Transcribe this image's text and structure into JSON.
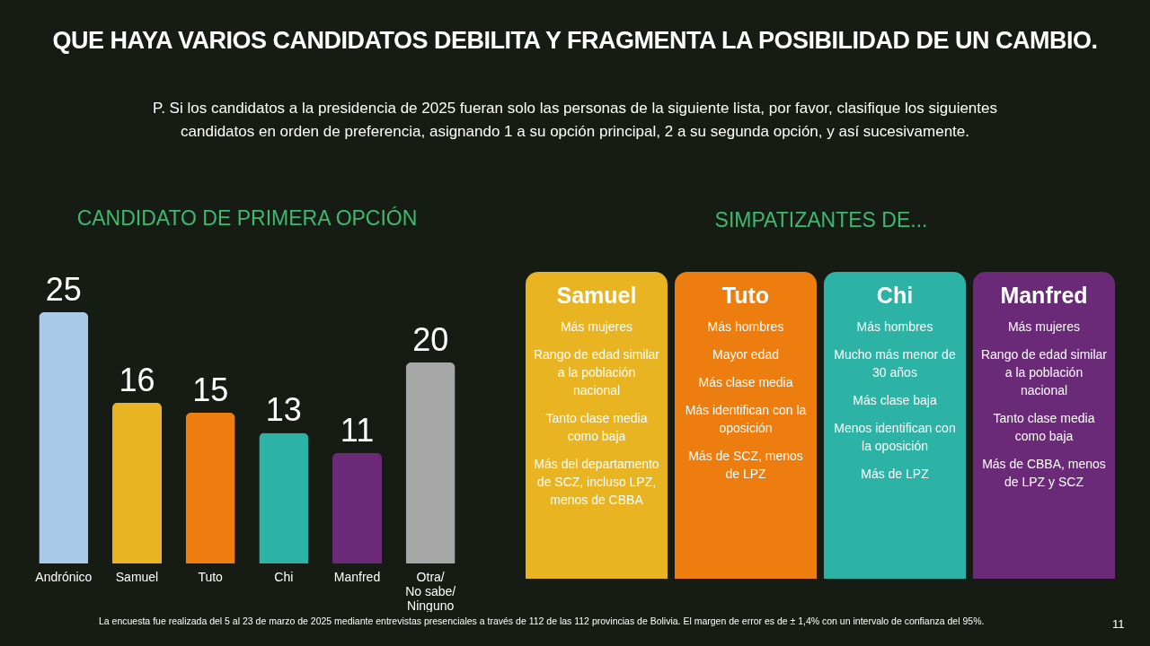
{
  "chart_data": [
    {
      "type": "other",
      "title": "QUE HAYA VARIOS CANDIDATOS DEBILITA Y FRAGMENTA LA POSIBILIDAD DE UN CAMBIO.",
      "subtitle": "P. Si los candidatos a la presidencia de 2025 fueran solo las personas de la siguiente lista, por favor, clasifique los siguientes candidatos en orden de preferencia, asignando 1 a su opción principal, 2 a su segunda opción, y así sucesivamente.",
      "annotations": [
        "La encuesta fue realizada del 5 al 23 de marzo de 2025 mediante entrevistas presenciales a través de 112 de las 112 provincias de Bolivia. El margen de error es de ± 1,4% con un intervalo de confianza del 95%.",
        "11"
      ]
    },
    {
      "type": "bar",
      "title": "CANDIDATO DE PRIMERA OPCIÓN",
      "categories": [
        "Andrónico",
        "Samuel",
        "Tuto",
        "Chi",
        "Manfred",
        "Otra/\nNo sabe/\nNinguno"
      ],
      "values": [
        25,
        16,
        15,
        13,
        11,
        20
      ],
      "colors": [
        "#a9c9e8",
        "#e9b422",
        "#ee7d0f",
        "#2db3a6",
        "#6b2a78",
        "#a6a6a6"
      ],
      "data_labels": true
    },
    {
      "type": "other",
      "title": "SIMPATIZANTES DE..."
    },
    {
      "type": "other",
      "title": "Samuel",
      "colors": [
        "#e9b422"
      ],
      "annotations": [
        "Más mujeres",
        "Rango de edad similar a la población nacional",
        "Tanto clase media como baja",
        "Más del departamento de SCZ, incluso LPZ, menos de CBBA"
      ]
    },
    {
      "type": "other",
      "title": "Tuto",
      "colors": [
        "#ee7d0f"
      ],
      "annotations": [
        "Más hombres",
        "Mayor edad",
        "Más clase media",
        "Más identifican con la oposición",
        "Más de SCZ, menos de LPZ"
      ]
    },
    {
      "type": "other",
      "title": "Chi",
      "colors": [
        "#2db3a6"
      ],
      "annotations": [
        "Más hombres",
        "Mucho más menor de 30 años",
        "Más clase baja",
        "Menos identifican con la oposición",
        "Más de LPZ"
      ]
    },
    {
      "type": "other",
      "title": "Manfred",
      "colors": [
        "#6b2a78"
      ],
      "annotations": [
        "Más mujeres",
        "Rango de edad similar a la población nacional",
        "Tanto clase media como baja",
        "Más de CBBA, menos de LPZ y SCZ"
      ]
    }
  ]
}
